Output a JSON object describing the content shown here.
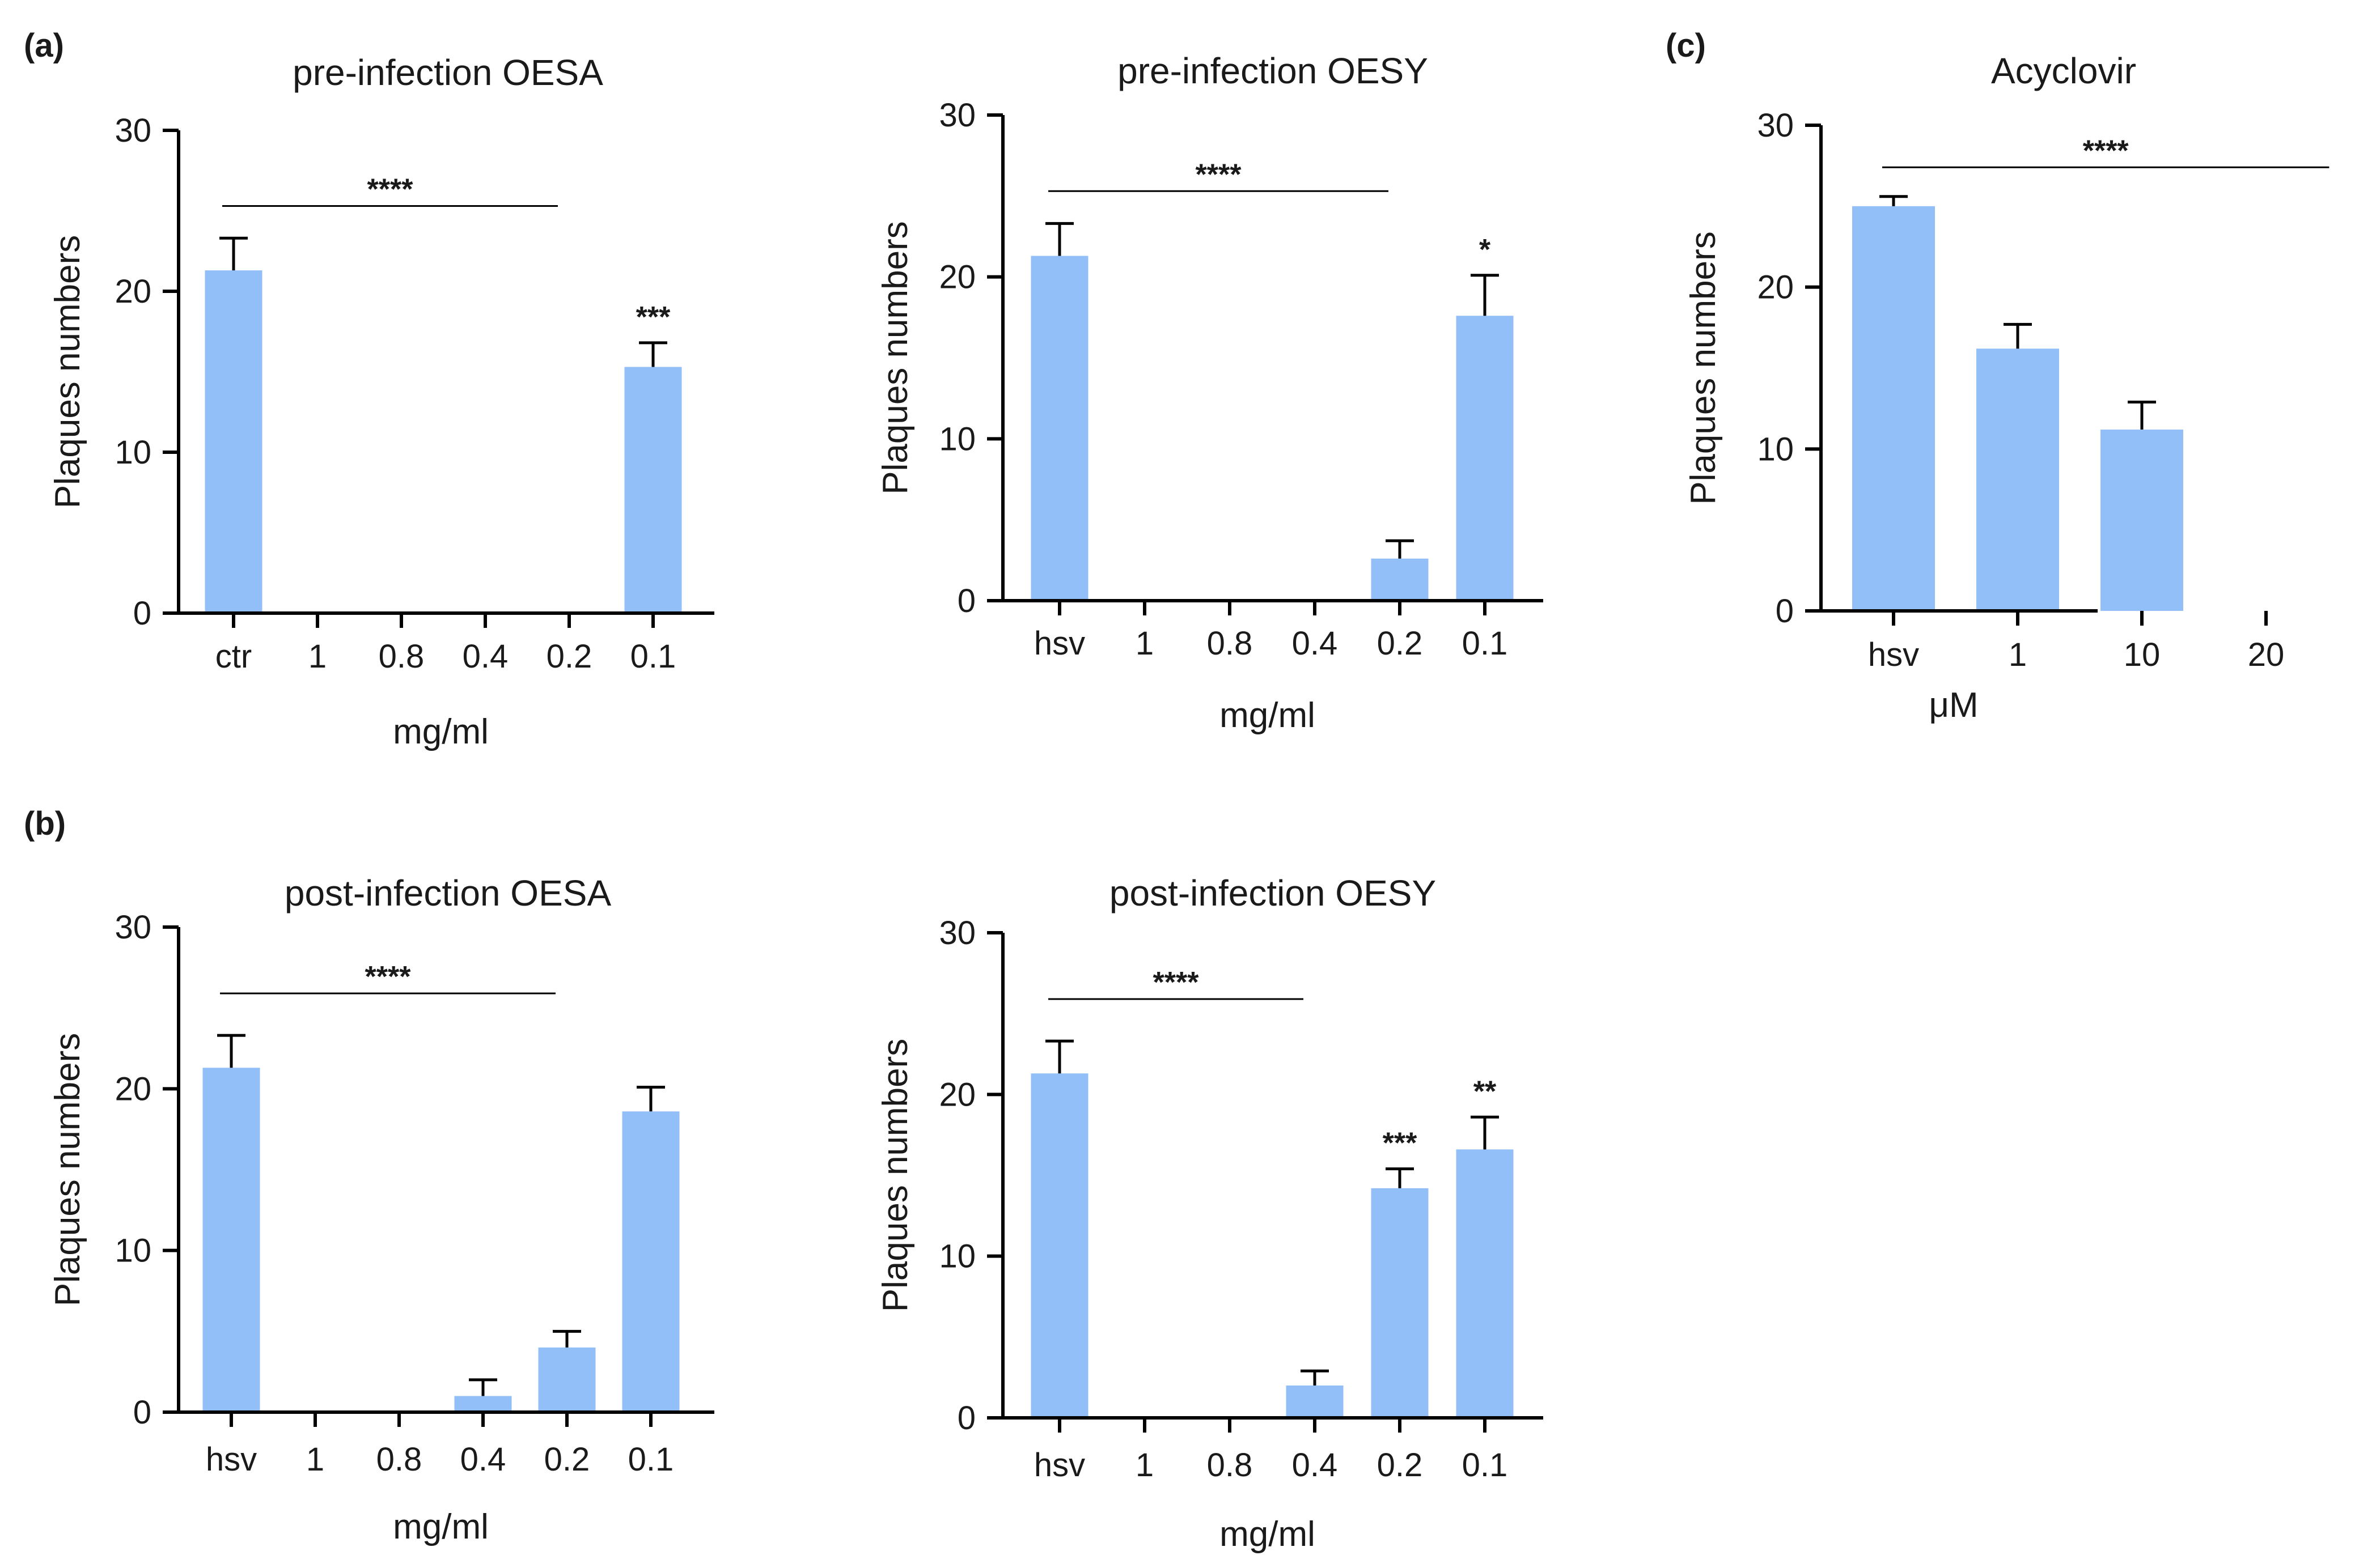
{
  "colors": {
    "bar": "#93bff9",
    "axis": "#000000",
    "text": "#1a1a1a"
  },
  "chart_data": [
    {
      "type": "bar",
      "id": "a1",
      "panel_label": "(a)",
      "title": "pre-infection OESA",
      "xlabel": "mg/ml",
      "ylabel": "Plaques numbers",
      "ylim": [
        0,
        30
      ],
      "yticks": [
        0,
        10,
        20,
        30
      ],
      "categories": [
        "ctr",
        "1",
        "0.8",
        "0.4",
        "0.2",
        "0.1"
      ],
      "values": [
        21.3,
        0,
        0,
        0,
        0,
        15.3
      ],
      "errors": [
        2.0,
        0,
        0,
        0,
        0,
        1.5
      ],
      "bar_significance": [
        "",
        "",
        "",
        "",
        "",
        "***"
      ],
      "bracket": {
        "from": 0,
        "to": 4,
        "label": "****",
        "level": 25.3
      }
    },
    {
      "type": "bar",
      "id": "a2",
      "panel_label": "",
      "title": "pre-infection OESY",
      "xlabel": "mg/ml",
      "ylabel": "Plaques numbers",
      "ylim": [
        0,
        30
      ],
      "yticks": [
        0,
        10,
        20,
        30
      ],
      "categories": [
        "hsv",
        "1",
        "0.8",
        "0.4",
        "0.2",
        "0.1"
      ],
      "values": [
        21.3,
        0,
        0,
        0,
        2.6,
        17.6
      ],
      "errors": [
        2.0,
        0,
        0,
        0,
        1.1,
        2.5
      ],
      "bar_significance": [
        "",
        "",
        "",
        "",
        "",
        "*"
      ],
      "bracket": {
        "from": 0,
        "to": 4,
        "label": "****",
        "level": 25.3
      }
    },
    {
      "type": "bar",
      "id": "c",
      "panel_label": "(c)",
      "title": "Acyclovir",
      "xlabel": "μM",
      "ylabel": "Plaques numbers",
      "ylim": [
        0,
        30
      ],
      "yticks": [
        0,
        10,
        20,
        30
      ],
      "categories": [
        "hsv",
        "1",
        "10",
        "20"
      ],
      "values": [
        25.0,
        16.2,
        11.2,
        0
      ],
      "errors": [
        0.6,
        1.5,
        1.7,
        0
      ],
      "bar_significance": [
        "",
        "",
        "",
        ""
      ],
      "bracket": {
        "from": 0,
        "to": 3.6,
        "label": "****",
        "level": 27.4
      }
    },
    {
      "type": "bar",
      "id": "b1",
      "panel_label": "(b)",
      "title": "post-infection OESA",
      "xlabel": "mg/ml",
      "ylabel": "Plaques numbers",
      "ylim": [
        0,
        30
      ],
      "yticks": [
        0,
        10,
        20,
        30
      ],
      "categories": [
        "hsv",
        "1",
        "0.8",
        "0.4",
        "0.2",
        "0.1"
      ],
      "values": [
        21.3,
        0,
        0,
        1.0,
        4.0,
        18.6
      ],
      "errors": [
        2.0,
        0,
        0,
        1.0,
        1.0,
        1.5
      ],
      "bar_significance": [
        "",
        "",
        "",
        "",
        "",
        ""
      ],
      "bracket": {
        "from": 0,
        "to": 4,
        "label": "****",
        "level": 25.9
      }
    },
    {
      "type": "bar",
      "id": "b2",
      "panel_label": "",
      "title": "post-infection OESY",
      "xlabel": "mg/ml",
      "ylabel": "Plaques numbers",
      "ylim": [
        0,
        30
      ],
      "yticks": [
        0,
        10,
        20,
        30
      ],
      "categories": [
        "hsv",
        "1",
        "0.8",
        "0.4",
        "0.2",
        "0.1"
      ],
      "values": [
        21.3,
        0,
        0,
        2.0,
        14.2,
        16.6
      ],
      "errors": [
        2.0,
        0,
        0,
        0.9,
        1.2,
        2.0
      ],
      "bar_significance": [
        "",
        "",
        "",
        "",
        "***",
        "**"
      ],
      "bracket": {
        "from": 0,
        "to": 3,
        "label": "****",
        "level": 25.9
      }
    }
  ]
}
